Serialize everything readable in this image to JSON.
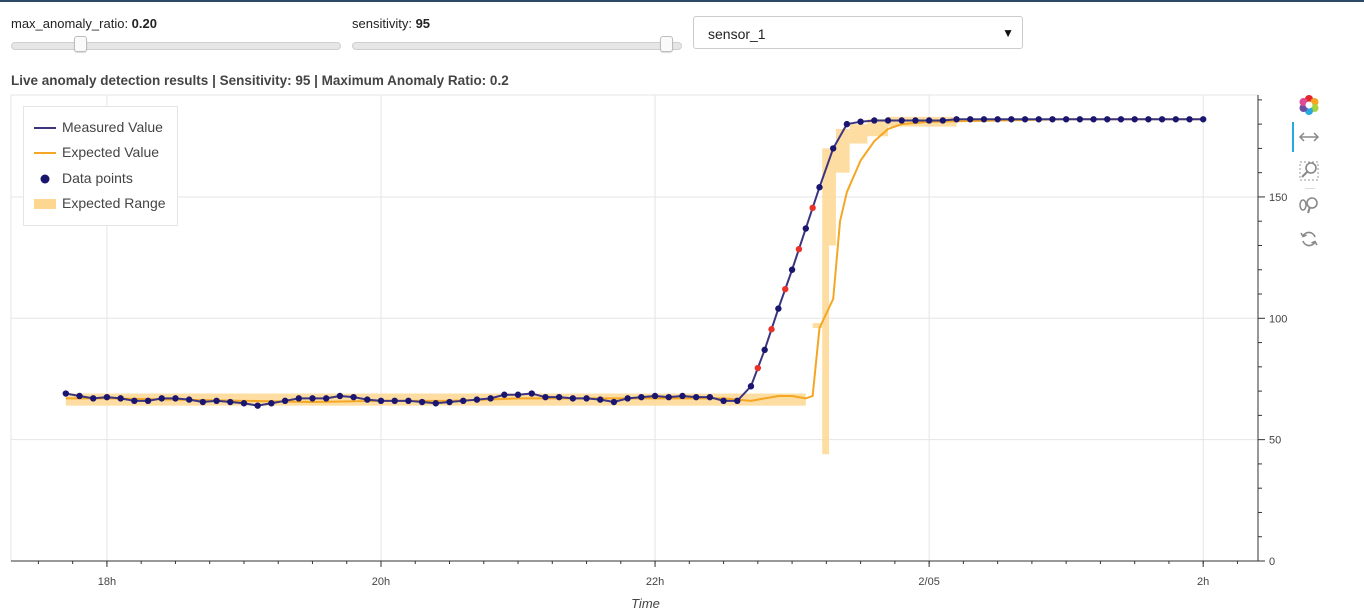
{
  "controls": {
    "max_anomaly_ratio": {
      "label": "max_anomaly_ratio: ",
      "value": "0.20",
      "fraction": 0.2
    },
    "sensitivity": {
      "label": "sensitivity: ",
      "value": "95",
      "fraction": 0.95
    },
    "sensor_select": {
      "selected": "sensor_1"
    }
  },
  "chart_title": "Live anomaly detection results | Sensitivity: 95 | Maximum Anomaly Ratio: 0.2",
  "toolbar": {
    "tools": [
      {
        "name": "bokeh-logo-icon",
        "active": false
      },
      {
        "name": "pan-icon",
        "active": true
      },
      {
        "name": "box-zoom-icon",
        "active": false
      },
      {
        "name": "wheel-zoom-icon",
        "active": false
      },
      {
        "name": "reset-icon",
        "active": false
      }
    ]
  },
  "colors": {
    "measured": "#3b3580",
    "expected": "#f5a623",
    "points": "#1a1670",
    "anomaly": "#e8322b",
    "range": "#fdd790"
  },
  "chart_data": {
    "type": "line",
    "title": "Live anomaly detection results | Sensitivity: 95 | Maximum Anomaly Ratio: 0.2",
    "xlabel": "Time",
    "ylabel": "",
    "x_unit": "hours",
    "x_ticks": [
      {
        "value": 18,
        "label": "18h"
      },
      {
        "value": 20,
        "label": "20h"
      },
      {
        "value": 22,
        "label": "22h"
      },
      {
        "value": 24,
        "label": "2/05"
      },
      {
        "value": 26,
        "label": "2h"
      }
    ],
    "xlim": [
      17.3,
      26.4
    ],
    "y_ticks": [
      0,
      50,
      100,
      150
    ],
    "ylim": [
      0,
      192
    ],
    "y_axis_side": "right",
    "grid": true,
    "legend": {
      "placement": "top-left",
      "entries": [
        "Measured Value",
        "Expected Value",
        "Data points",
        "Expected Range"
      ]
    },
    "series": [
      {
        "name": "Measured Value",
        "x": [
          17.7,
          17.8,
          17.9,
          18,
          18.1,
          18.2,
          18.3,
          18.4,
          18.5,
          18.6,
          18.7,
          18.8,
          18.9,
          19,
          19.1,
          19.2,
          19.3,
          19.4,
          19.5,
          19.6,
          19.7,
          19.8,
          19.9,
          20,
          20.1,
          20.2,
          20.3,
          20.4,
          20.5,
          20.6,
          20.7,
          20.8,
          20.9,
          21,
          21.1,
          21.2,
          21.3,
          21.4,
          21.5,
          21.6,
          21.7,
          21.8,
          21.9,
          22,
          22.1,
          22.2,
          22.3,
          22.4,
          22.5,
          22.6,
          22.7,
          22.8,
          22.9,
          23,
          23.1,
          23.2,
          23.3,
          23.4,
          23.5,
          23.6,
          23.7,
          23.8,
          23.9,
          24,
          24.1,
          24.2,
          24.3,
          24.4,
          24.5,
          24.6,
          24.7,
          24.8,
          24.9,
          25,
          25.1,
          25.2,
          25.3,
          25.4,
          25.5,
          25.6,
          25.7,
          25.8,
          25.9,
          26
        ],
        "y": [
          69,
          68,
          67,
          67.5,
          67,
          66,
          66,
          67,
          67,
          66.5,
          65.5,
          66,
          65.5,
          65,
          64,
          65,
          66,
          67,
          67,
          67,
          68,
          67.5,
          66.5,
          66,
          66,
          66,
          65.5,
          65,
          65.5,
          66,
          66.5,
          67,
          68.5,
          68.5,
          69,
          67.5,
          67.5,
          67,
          67,
          66.5,
          65.5,
          67,
          67.5,
          68,
          67.5,
          68,
          67.5,
          67.5,
          66,
          66,
          72,
          87,
          104,
          120,
          137,
          154,
          170,
          180,
          181,
          181.5,
          181.5,
          181.5,
          181.5,
          181.5,
          181.5,
          182,
          182,
          182,
          182,
          182,
          182,
          182,
          182,
          182,
          182,
          182,
          182,
          182,
          182,
          182,
          182,
          182,
          182,
          182
        ],
        "anomaly_x": [
          22.75,
          22.85,
          22.95,
          23.05,
          23.15
        ]
      },
      {
        "name": "Expected Value",
        "x": [
          17.7,
          18,
          18.5,
          19,
          19.5,
          20,
          20.5,
          21,
          21.5,
          22,
          22.5,
          22.7,
          22.9,
          23,
          23.1,
          23.15,
          23.2,
          23.3,
          23.35,
          23.4,
          23.5,
          23.6,
          23.7,
          23.8,
          24,
          24.5,
          25,
          25.5,
          26
        ],
        "y": [
          67,
          67,
          66.5,
          66,
          65.5,
          66,
          66,
          67,
          67,
          67,
          67,
          66,
          68,
          68,
          67,
          68,
          96,
          108,
          140,
          152,
          165,
          173,
          178,
          180,
          181,
          181.5,
          182,
          182,
          182
        ]
      }
    ],
    "expected_range": [
      {
        "x0": 17.7,
        "x1": 23.1,
        "low": 64,
        "high": 69
      },
      {
        "x0": 23.15,
        "x1": 23.22,
        "low": 96,
        "high": 98
      },
      {
        "x0": 23.22,
        "x1": 23.27,
        "low": 44,
        "high": 170
      },
      {
        "x0": 23.27,
        "x1": 23.32,
        "low": 130,
        "high": 170
      },
      {
        "x0": 23.32,
        "x1": 23.42,
        "low": 160,
        "high": 178
      },
      {
        "x0": 23.42,
        "x1": 23.55,
        "low": 172,
        "high": 180
      },
      {
        "x0": 23.55,
        "x1": 23.7,
        "low": 175,
        "high": 182
      },
      {
        "x0": 23.7,
        "x1": 24.2,
        "low": 179,
        "high": 183
      }
    ]
  }
}
